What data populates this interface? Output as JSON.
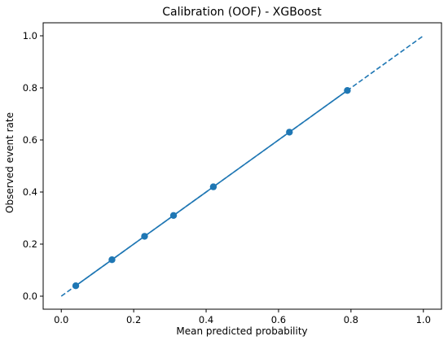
{
  "chart_data": {
    "type": "scatter",
    "title": "Calibration (OOF) - XGBoost",
    "xlabel": "Mean predicted probability",
    "ylabel": "Observed event rate",
    "xlim": [
      -0.05,
      1.05
    ],
    "ylim": [
      -0.05,
      1.05
    ],
    "xticks": [
      "0.0",
      "0.2",
      "0.4",
      "0.6",
      "0.8",
      "1.0"
    ],
    "yticks": [
      "0.0",
      "0.2",
      "0.4",
      "0.6",
      "0.8",
      "1.0"
    ],
    "grid": false,
    "series": [
      {
        "style": "line-marker",
        "color": "#1f77b4",
        "points": [
          {
            "x": 0.04,
            "y": 0.04
          },
          {
            "x": 0.14,
            "y": 0.14
          },
          {
            "x": 0.23,
            "y": 0.23
          },
          {
            "x": 0.31,
            "y": 0.31
          },
          {
            "x": 0.42,
            "y": 0.42
          },
          {
            "x": 0.63,
            "y": 0.63
          },
          {
            "x": 0.79,
            "y": 0.79
          }
        ]
      },
      {
        "style": "dashed",
        "color": "#1f77b4",
        "points": [
          {
            "x": 0.0,
            "y": 0.0
          },
          {
            "x": 1.0,
            "y": 1.0
          }
        ]
      }
    ]
  }
}
